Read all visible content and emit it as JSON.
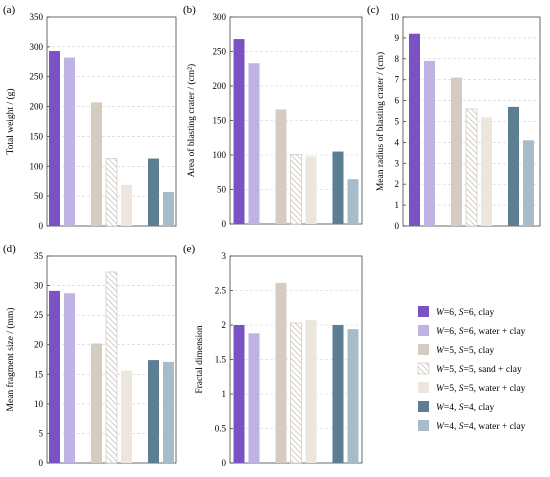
{
  "chart_data": [
    {
      "panel": "(a)",
      "type": "bar",
      "ylabel": "Total weight / (g)",
      "ylim": [
        0,
        350
      ],
      "yticks": [
        0,
        50,
        100,
        150,
        200,
        250,
        300,
        350
      ],
      "grid": true,
      "groups": [
        {
          "series": [
            "s1",
            "s2"
          ],
          "values": [
            293,
            282
          ]
        },
        {
          "series": [
            "s3",
            "s4",
            "s5"
          ],
          "values": [
            207,
            113,
            69
          ]
        },
        {
          "series": [
            "s6",
            "s7"
          ],
          "values": [
            113,
            57
          ]
        }
      ]
    },
    {
      "panel": "(b)",
      "type": "bar",
      "ylabel": "Area of blasting crater / (cm²)",
      "ylim": [
        0,
        300
      ],
      "yticks": [
        0,
        50,
        100,
        150,
        200,
        250,
        300
      ],
      "grid": true,
      "groups": [
        {
          "series": [
            "s1",
            "s2"
          ],
          "values": [
            268,
            233
          ]
        },
        {
          "series": [
            "s3",
            "s4",
            "s5"
          ],
          "values": [
            166,
            101,
            98
          ]
        },
        {
          "series": [
            "s6",
            "s7"
          ],
          "values": [
            105,
            65
          ]
        }
      ]
    },
    {
      "panel": "(c)",
      "type": "bar",
      "ylabel": "Mean radius of blasting crater / (cm)",
      "ylim": [
        0,
        10
      ],
      "yticks": [
        0,
        1,
        2,
        3,
        4,
        5,
        6,
        7,
        8,
        9,
        10
      ],
      "grid": true,
      "groups": [
        {
          "series": [
            "s1",
            "s2"
          ],
          "values": [
            9.2,
            7.9
          ]
        },
        {
          "series": [
            "s3",
            "s4",
            "s5"
          ],
          "values": [
            7.1,
            5.6,
            5.2
          ]
        },
        {
          "series": [
            "s6",
            "s7"
          ],
          "values": [
            5.7,
            4.1
          ]
        }
      ]
    },
    {
      "panel": "(d)",
      "type": "bar",
      "ylabel": "Mean fragment size / (mm)",
      "ylim": [
        0,
        35
      ],
      "yticks": [
        0,
        5,
        10,
        15,
        20,
        25,
        30,
        35
      ],
      "grid": true,
      "groups": [
        {
          "series": [
            "s1",
            "s2"
          ],
          "values": [
            29.1,
            28.7
          ]
        },
        {
          "series": [
            "s3",
            "s4",
            "s5"
          ],
          "values": [
            20.2,
            32.3,
            15.6
          ]
        },
        {
          "series": [
            "s6",
            "s7"
          ],
          "values": [
            17.4,
            17.1
          ]
        }
      ]
    },
    {
      "panel": "(e)",
      "type": "bar",
      "ylabel": "Fractal dimension",
      "ylim": [
        0,
        3
      ],
      "yticks": [
        0,
        0.5,
        1,
        1.5,
        2,
        2.5,
        3
      ],
      "grid": true,
      "groups": [
        {
          "series": [
            "s1",
            "s2"
          ],
          "values": [
            2.0,
            1.88
          ]
        },
        {
          "series": [
            "s3",
            "s4",
            "s5"
          ],
          "values": [
            2.61,
            2.03,
            2.07
          ]
        },
        {
          "series": [
            "s6",
            "s7"
          ],
          "values": [
            2.0,
            1.94
          ]
        }
      ]
    }
  ],
  "legend": {
    "placement": "right",
    "items": [
      {
        "id": "s1",
        "w": "6",
        "s": "6",
        "text": ", clay",
        "color": "#7b52c3",
        "hatch": false
      },
      {
        "id": "s2",
        "w": "6",
        "s": "6",
        "text": ", water + clay",
        "color": "#c1b2e6",
        "hatch": false
      },
      {
        "id": "s3",
        "w": "5",
        "s": "5",
        "text": ", clay",
        "color": "#d4cbc1",
        "hatch": false
      },
      {
        "id": "s4",
        "w": "5",
        "s": "5",
        "text": ", sand + clay",
        "color": "#ffffff",
        "hatch": true
      },
      {
        "id": "s5",
        "w": "5",
        "s": "5",
        "text": ", water + clay",
        "color": "#ece6dd",
        "hatch": false
      },
      {
        "id": "s6",
        "w": "4",
        "s": "4",
        "text": ", clay",
        "color": "#5b7e92",
        "hatch": false
      },
      {
        "id": "s7",
        "w": "4",
        "s": "4",
        "text": ", water + clay",
        "color": "#a6bccb",
        "hatch": false
      }
    ]
  }
}
